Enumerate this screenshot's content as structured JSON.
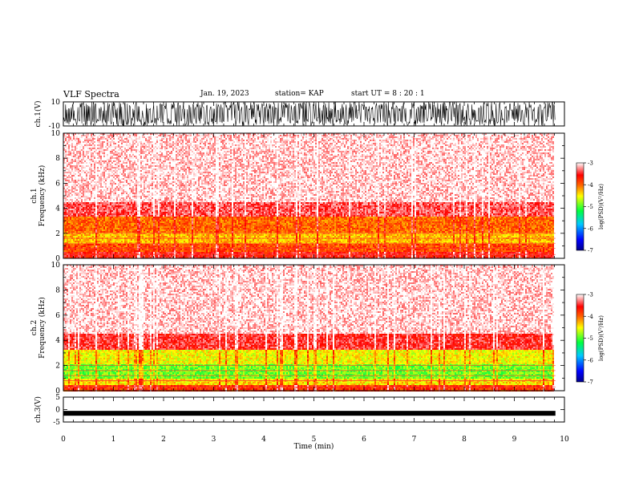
{
  "header": {
    "title": "VLF Spectra",
    "date": "Jan. 19, 2023",
    "station": "station= KAP",
    "start_ut": "start  UT =  8 : 20 : 1"
  },
  "chart_data": [
    {
      "type": "line",
      "panel": "ch1-waveform",
      "ylabel": "ch.1(V)",
      "ylim": [
        -10,
        10
      ],
      "yticks": [
        "10",
        "-10"
      ],
      "xlim": [
        0,
        10
      ],
      "data_extent_x": [
        0,
        9.82
      ],
      "description_values": {
        "amplitude_min": -10,
        "amplitude_max": 10
      }
    },
    {
      "type": "heatmap",
      "panel": "ch1-spectrogram",
      "ylabel": "ch.1\nFrequency (kHz)",
      "ylim": [
        0,
        10
      ],
      "yticks": [
        "0",
        "2",
        "4",
        "6",
        "8",
        "10"
      ],
      "xlim": [
        0,
        10
      ],
      "data_extent_x": [
        0,
        9.82
      ],
      "band_profile_kHz": [
        [
          0,
          0.5,
          -3.6
        ],
        [
          0.5,
          1.2,
          -3.9
        ],
        [
          1.2,
          2.0,
          -4.3
        ],
        [
          2.0,
          3.3,
          -4.0
        ],
        [
          3.3,
          4.5,
          -3.4
        ],
        [
          4.5,
          10,
          -3.1
        ]
      ],
      "colorbar": {
        "label": "log(PSD)(V²/Hz)",
        "range": [
          -7,
          -3
        ],
        "ticks": [
          "-3",
          "-4",
          "-5",
          "-6",
          "-7"
        ]
      }
    },
    {
      "type": "heatmap",
      "panel": "ch2-spectrogram",
      "ylabel": "ch.2\nFrequency (kHz)",
      "ylim": [
        0,
        10
      ],
      "yticks": [
        "0",
        "2",
        "4",
        "6",
        "8",
        "10"
      ],
      "xlim": [
        0,
        10
      ],
      "data_extent_x": [
        0,
        9.82
      ],
      "band_profile_kHz": [
        [
          0,
          0.4,
          -3.8
        ],
        [
          0.4,
          1.0,
          -4.4
        ],
        [
          1.0,
          2.1,
          -4.9
        ],
        [
          2.1,
          3.3,
          -4.5
        ],
        [
          3.3,
          4.5,
          -3.5
        ],
        [
          4.5,
          10,
          -3.1
        ]
      ],
      "colorbar": {
        "label": "log(PSD)(V²/Hz)",
        "range": [
          -7,
          -3
        ],
        "ticks": [
          "-3",
          "-4",
          "-5",
          "-6",
          "-7"
        ]
      }
    },
    {
      "type": "line",
      "panel": "ch3-waveform",
      "ylabel": "ch.3(V)",
      "ylim": [
        -5,
        5
      ],
      "yticks": [
        "5",
        "0",
        "-5"
      ],
      "xlim": [
        0,
        10
      ],
      "data_extent_x": [
        0,
        9.82
      ],
      "description_values": {
        "level": -1.5
      }
    }
  ],
  "x_axis": {
    "label": "Time (min)",
    "range": [
      0,
      10
    ],
    "ticks": [
      "0",
      "1",
      "2",
      "3",
      "4",
      "5",
      "6",
      "7",
      "8",
      "9",
      "10"
    ]
  }
}
